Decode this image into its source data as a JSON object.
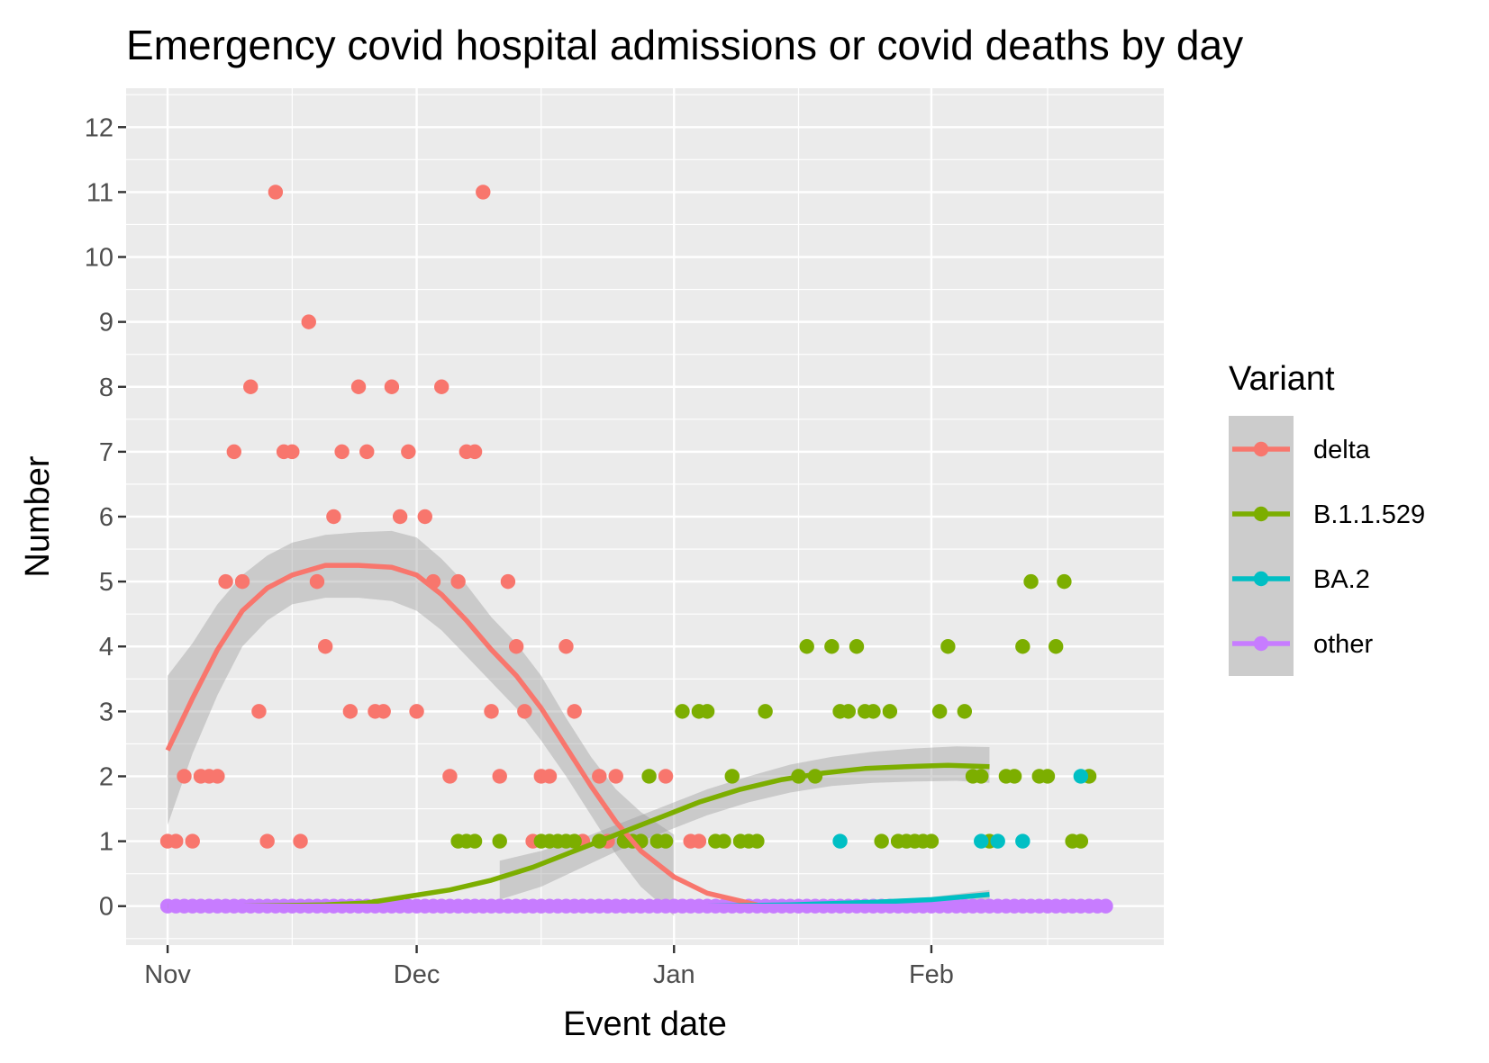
{
  "chart_data": {
    "type": "scatter",
    "title": "Emergency covid hospital admissions or covid deaths by day",
    "xlabel": "Event date",
    "ylabel": "Number",
    "x_ticks": [
      "Nov",
      "Dec",
      "Jan",
      "Feb"
    ],
    "x_tick_dates": [
      "2021-11-01",
      "2021-12-01",
      "2022-01-01",
      "2022-02-01"
    ],
    "xlim": [
      "2021-10-27",
      "2022-03-01"
    ],
    "y_ticks": [
      "0",
      "1",
      "2",
      "3",
      "4",
      "5",
      "6",
      "7",
      "8",
      "9",
      "10",
      "11",
      "12"
    ],
    "ylim": [
      -0.6,
      12.6
    ],
    "grid": true,
    "legend": {
      "title": "Variant",
      "position": "right"
    },
    "series": [
      {
        "name": "delta",
        "color": "#F8766D",
        "points": [
          [
            "2021-11-01",
            1
          ],
          [
            "2021-11-02",
            1
          ],
          [
            "2021-11-03",
            2
          ],
          [
            "2021-11-04",
            1
          ],
          [
            "2021-11-05",
            2
          ],
          [
            "2021-11-06",
            2
          ],
          [
            "2021-11-07",
            2
          ],
          [
            "2021-11-08",
            5
          ],
          [
            "2021-11-09",
            7
          ],
          [
            "2021-11-10",
            5
          ],
          [
            "2021-11-11",
            8
          ],
          [
            "2021-11-12",
            3
          ],
          [
            "2021-11-13",
            1
          ],
          [
            "2021-11-14",
            11
          ],
          [
            "2021-11-15",
            7
          ],
          [
            "2021-11-16",
            7
          ],
          [
            "2021-11-17",
            1
          ],
          [
            "2021-11-18",
            9
          ],
          [
            "2021-11-19",
            5
          ],
          [
            "2021-11-20",
            4
          ],
          [
            "2021-11-21",
            6
          ],
          [
            "2021-11-22",
            7
          ],
          [
            "2021-11-23",
            3
          ],
          [
            "2021-11-24",
            8
          ],
          [
            "2021-11-25",
            7
          ],
          [
            "2021-11-26",
            3
          ],
          [
            "2021-11-27",
            3
          ],
          [
            "2021-11-28",
            8
          ],
          [
            "2021-11-29",
            6
          ],
          [
            "2021-11-30",
            7
          ],
          [
            "2021-12-01",
            3
          ],
          [
            "2021-12-02",
            6
          ],
          [
            "2021-12-03",
            5
          ],
          [
            "2021-12-04",
            8
          ],
          [
            "2021-12-05",
            2
          ],
          [
            "2021-12-06",
            5
          ],
          [
            "2021-12-07",
            7
          ],
          [
            "2021-12-08",
            7
          ],
          [
            "2021-12-09",
            11
          ],
          [
            "2021-12-10",
            3
          ],
          [
            "2021-12-11",
            2
          ],
          [
            "2021-12-12",
            5
          ],
          [
            "2021-12-13",
            4
          ],
          [
            "2021-12-14",
            3
          ],
          [
            "2021-12-15",
            1
          ],
          [
            "2021-12-16",
            2
          ],
          [
            "2021-12-17",
            2
          ],
          [
            "2021-12-19",
            4
          ],
          [
            "2021-12-20",
            3
          ],
          [
            "2021-12-21",
            1
          ],
          [
            "2021-12-23",
            2
          ],
          [
            "2021-12-24",
            1
          ],
          [
            "2021-12-25",
            2
          ],
          [
            "2021-12-31",
            2
          ],
          [
            "2022-01-03",
            1
          ],
          [
            "2022-01-04",
            1
          ]
        ],
        "smooth": [
          [
            "2021-11-01",
            2.4
          ],
          [
            "2021-11-04",
            3.2
          ],
          [
            "2021-11-07",
            3.95
          ],
          [
            "2021-11-10",
            4.55
          ],
          [
            "2021-11-13",
            4.9
          ],
          [
            "2021-11-16",
            5.1
          ],
          [
            "2021-11-20",
            5.25
          ],
          [
            "2021-11-24",
            5.25
          ],
          [
            "2021-11-28",
            5.22
          ],
          [
            "2021-12-01",
            5.1
          ],
          [
            "2021-12-04",
            4.8
          ],
          [
            "2021-12-07",
            4.4
          ],
          [
            "2021-12-10",
            3.95
          ],
          [
            "2021-12-13",
            3.55
          ],
          [
            "2021-12-16",
            3.05
          ],
          [
            "2021-12-19",
            2.45
          ],
          [
            "2021-12-22",
            1.85
          ],
          [
            "2021-12-25",
            1.3
          ],
          [
            "2021-12-28",
            0.85
          ],
          [
            "2022-01-01",
            0.45
          ],
          [
            "2022-01-05",
            0.2
          ],
          [
            "2022-01-11",
            0.02
          ]
        ],
        "band_upper": [
          [
            "2021-11-01",
            3.55
          ],
          [
            "2021-11-04",
            4.05
          ],
          [
            "2021-11-07",
            4.65
          ],
          [
            "2021-11-10",
            5.1
          ],
          [
            "2021-11-13",
            5.4
          ],
          [
            "2021-11-16",
            5.6
          ],
          [
            "2021-11-20",
            5.72
          ],
          [
            "2021-11-24",
            5.76
          ],
          [
            "2021-11-28",
            5.78
          ],
          [
            "2021-12-01",
            5.68
          ],
          [
            "2021-12-04",
            5.35
          ],
          [
            "2021-12-07",
            4.95
          ],
          [
            "2021-12-10",
            4.45
          ],
          [
            "2021-12-13",
            4.05
          ],
          [
            "2021-12-16",
            3.55
          ],
          [
            "2021-12-19",
            2.9
          ],
          [
            "2021-12-22",
            2.3
          ],
          [
            "2021-12-25",
            1.8
          ],
          [
            "2021-12-28",
            1.45
          ],
          [
            "2022-01-01",
            1.1
          ]
        ],
        "band_lower": [
          [
            "2021-11-01",
            1.25
          ],
          [
            "2021-11-04",
            2.35
          ],
          [
            "2021-11-07",
            3.25
          ],
          [
            "2021-11-10",
            4.0
          ],
          [
            "2021-11-13",
            4.4
          ],
          [
            "2021-11-16",
            4.65
          ],
          [
            "2021-11-20",
            4.75
          ],
          [
            "2021-11-24",
            4.75
          ],
          [
            "2021-11-28",
            4.7
          ],
          [
            "2021-12-01",
            4.55
          ],
          [
            "2021-12-04",
            4.25
          ],
          [
            "2021-12-07",
            3.85
          ],
          [
            "2021-12-10",
            3.45
          ],
          [
            "2021-12-13",
            3.05
          ],
          [
            "2021-12-16",
            2.55
          ],
          [
            "2021-12-19",
            2.0
          ],
          [
            "2021-12-22",
            1.4
          ],
          [
            "2021-12-25",
            0.8
          ],
          [
            "2021-12-28",
            0.3
          ],
          [
            "2022-01-01",
            -0.15
          ]
        ]
      },
      {
        "name": "B.1.1.529",
        "color": "#7CAE00",
        "points": [
          [
            "2021-12-06",
            1
          ],
          [
            "2021-12-07",
            1
          ],
          [
            "2021-12-08",
            1
          ],
          [
            "2021-12-11",
            1
          ],
          [
            "2021-12-16",
            1
          ],
          [
            "2021-12-17",
            1
          ],
          [
            "2021-12-18",
            1
          ],
          [
            "2021-12-19",
            1
          ],
          [
            "2021-12-20",
            1
          ],
          [
            "2021-12-23",
            1
          ],
          [
            "2021-12-26",
            1
          ],
          [
            "2021-12-27",
            1
          ],
          [
            "2021-12-28",
            1
          ],
          [
            "2021-12-29",
            2
          ],
          [
            "2021-12-30",
            1
          ],
          [
            "2021-12-31",
            1
          ],
          [
            "2022-01-02",
            3
          ],
          [
            "2022-01-04",
            3
          ],
          [
            "2022-01-05",
            3
          ],
          [
            "2022-01-06",
            1
          ],
          [
            "2022-01-07",
            1
          ],
          [
            "2022-01-08",
            2
          ],
          [
            "2022-01-09",
            1
          ],
          [
            "2022-01-10",
            1
          ],
          [
            "2022-01-11",
            1
          ],
          [
            "2022-01-12",
            3
          ],
          [
            "2022-01-16",
            2
          ],
          [
            "2022-01-17",
            4
          ],
          [
            "2022-01-18",
            2
          ],
          [
            "2022-01-20",
            4
          ],
          [
            "2022-01-21",
            3
          ],
          [
            "2022-01-22",
            3
          ],
          [
            "2022-01-23",
            4
          ],
          [
            "2022-01-24",
            3
          ],
          [
            "2022-01-25",
            3
          ],
          [
            "2022-01-26",
            1
          ],
          [
            "2022-01-27",
            3
          ],
          [
            "2022-01-28",
            1
          ],
          [
            "2022-01-29",
            1
          ],
          [
            "2022-01-30",
            1
          ],
          [
            "2022-01-31",
            1
          ],
          [
            "2022-02-01",
            1
          ],
          [
            "2022-02-02",
            3
          ],
          [
            "2022-02-03",
            4
          ],
          [
            "2022-02-05",
            3
          ],
          [
            "2022-02-06",
            2
          ],
          [
            "2022-02-07",
            2
          ],
          [
            "2022-02-08",
            1
          ],
          [
            "2022-02-10",
            2
          ],
          [
            "2022-02-11",
            2
          ],
          [
            "2022-02-12",
            4
          ],
          [
            "2022-02-13",
            5
          ],
          [
            "2022-02-14",
            2
          ],
          [
            "2022-02-15",
            2
          ],
          [
            "2022-02-16",
            4
          ],
          [
            "2022-02-17",
            5
          ],
          [
            "2022-02-18",
            1
          ],
          [
            "2022-02-19",
            1
          ],
          [
            "2022-02-20",
            2
          ]
        ],
        "smooth": [
          [
            "2021-11-01",
            0.0
          ],
          [
            "2021-11-10",
            0.0
          ],
          [
            "2021-11-20",
            0.02
          ],
          [
            "2021-11-25",
            0.05
          ],
          [
            "2021-11-30",
            0.15
          ],
          [
            "2021-12-05",
            0.25
          ],
          [
            "2021-12-10",
            0.4
          ],
          [
            "2021-12-15",
            0.6
          ],
          [
            "2021-12-20",
            0.85
          ],
          [
            "2021-12-25",
            1.1
          ],
          [
            "2021-12-30",
            1.35
          ],
          [
            "2022-01-04",
            1.6
          ],
          [
            "2022-01-09",
            1.8
          ],
          [
            "2022-01-14",
            1.95
          ],
          [
            "2022-01-19",
            2.05
          ],
          [
            "2022-01-24",
            2.12
          ],
          [
            "2022-01-29",
            2.15
          ],
          [
            "2022-02-03",
            2.17
          ],
          [
            "2022-02-08",
            2.15
          ]
        ],
        "band_upper": [
          [
            "2021-12-11",
            0.7
          ],
          [
            "2021-12-16",
            0.85
          ],
          [
            "2021-12-21",
            1.05
          ],
          [
            "2021-12-26",
            1.3
          ],
          [
            "2021-12-31",
            1.55
          ],
          [
            "2022-01-05",
            1.8
          ],
          [
            "2022-01-10",
            2.0
          ],
          [
            "2022-01-15",
            2.18
          ],
          [
            "2022-01-20",
            2.3
          ],
          [
            "2022-01-25",
            2.38
          ],
          [
            "2022-01-30",
            2.43
          ],
          [
            "2022-02-04",
            2.46
          ],
          [
            "2022-02-08",
            2.45
          ]
        ],
        "band_lower": [
          [
            "2021-12-11",
            0.1
          ],
          [
            "2021-12-16",
            0.3
          ],
          [
            "2021-12-21",
            0.6
          ],
          [
            "2021-12-26",
            0.9
          ],
          [
            "2021-12-31",
            1.15
          ],
          [
            "2022-01-05",
            1.4
          ],
          [
            "2022-01-10",
            1.6
          ],
          [
            "2022-01-15",
            1.75
          ],
          [
            "2022-01-20",
            1.85
          ],
          [
            "2022-01-25",
            1.9
          ],
          [
            "2022-01-30",
            1.92
          ],
          [
            "2022-02-04",
            1.93
          ],
          [
            "2022-02-08",
            1.9
          ]
        ]
      },
      {
        "name": "BA.2",
        "color": "#00BFC4",
        "points": [
          [
            "2022-01-21",
            1
          ],
          [
            "2022-02-07",
            1
          ],
          [
            "2022-02-09",
            1
          ],
          [
            "2022-02-12",
            1
          ],
          [
            "2022-02-19",
            2
          ]
        ],
        "smooth": [
          [
            "2022-01-05",
            0.0
          ],
          [
            "2022-01-15",
            0.02
          ],
          [
            "2022-01-25",
            0.06
          ],
          [
            "2022-02-01",
            0.1
          ],
          [
            "2022-02-08",
            0.18
          ]
        ],
        "band_upper": [
          [
            "2022-01-05",
            0.03
          ],
          [
            "2022-01-20",
            0.06
          ],
          [
            "2022-02-01",
            0.14
          ],
          [
            "2022-02-08",
            0.25
          ]
        ],
        "band_lower": [
          [
            "2022-01-05",
            -0.03
          ],
          [
            "2022-01-20",
            0.0
          ],
          [
            "2022-02-01",
            0.04
          ],
          [
            "2022-02-08",
            0.1
          ]
        ]
      },
      {
        "name": "other",
        "color": "#C77CFF",
        "points_constant": {
          "from": "2021-11-01",
          "to": "2022-02-22",
          "value": 0
        },
        "smooth": [
          [
            "2021-11-01",
            0.0
          ],
          [
            "2022-02-22",
            0.0
          ]
        ]
      }
    ]
  }
}
